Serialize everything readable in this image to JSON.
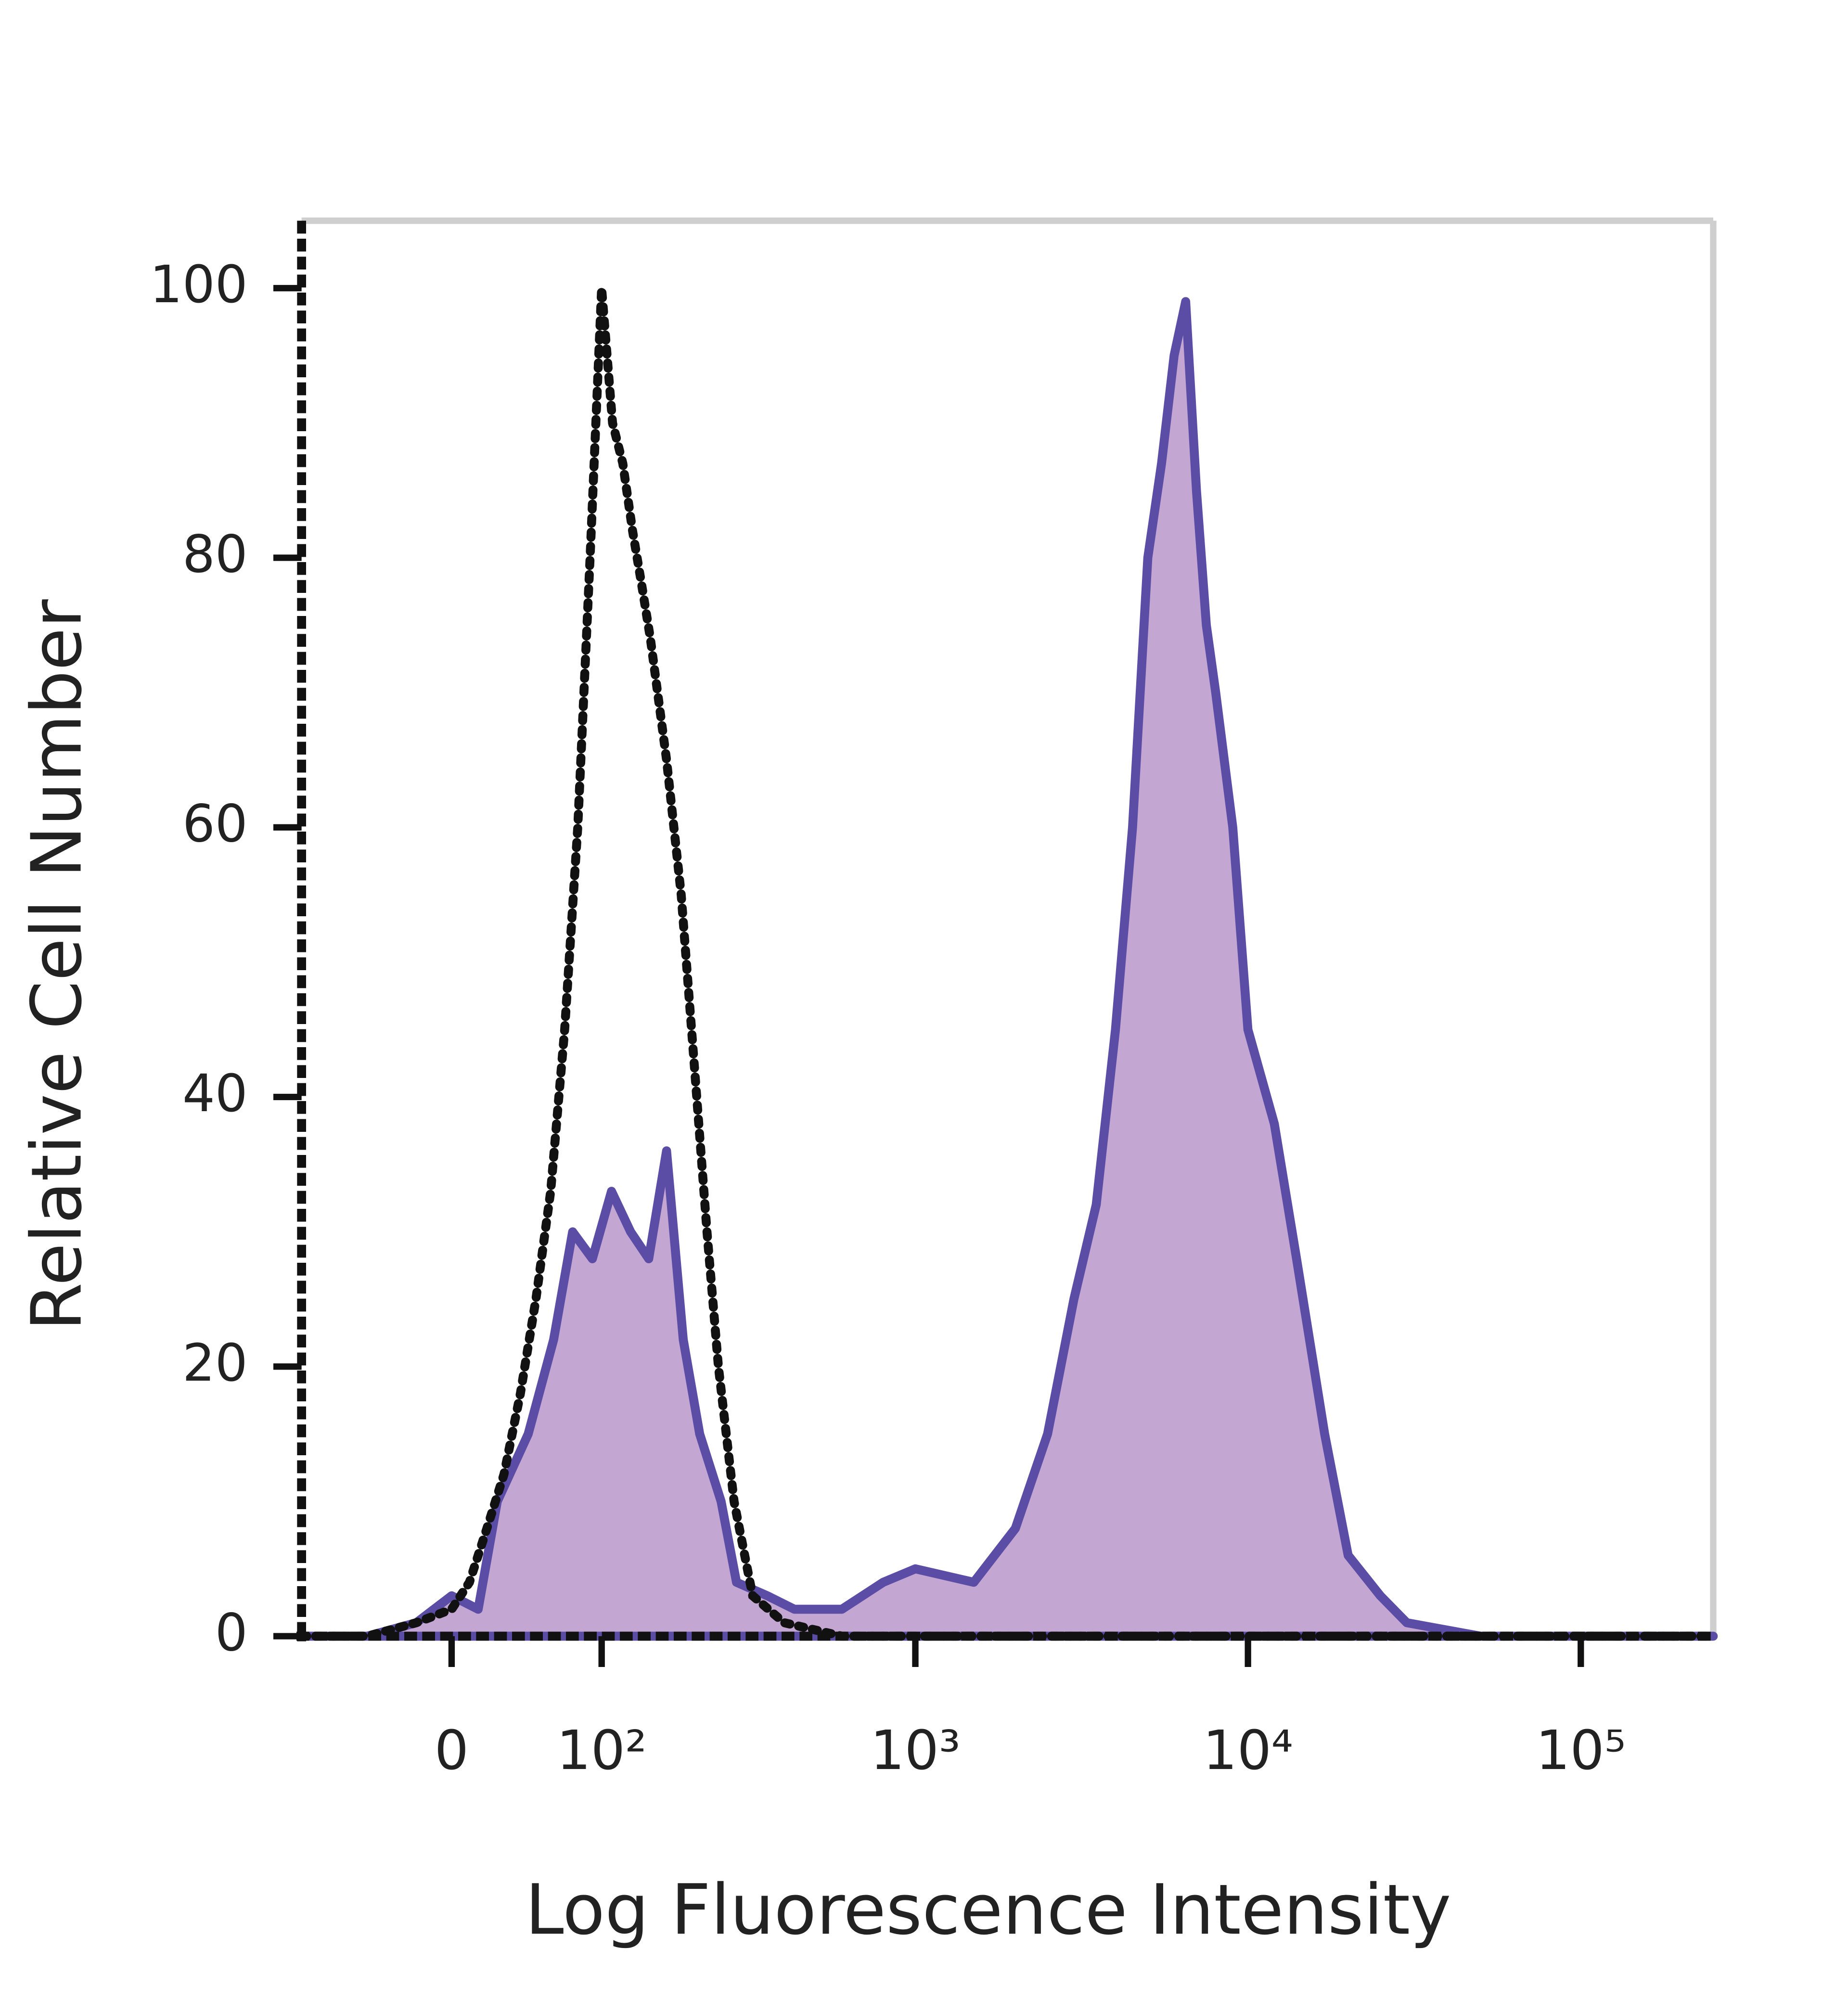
{
  "chart_data": {
    "type": "histogram-overlay",
    "x_label": "Log Fluorescence Intensity",
    "y_label": "Relative Cell Number",
    "xscale": "biexponential",
    "xlim": [
      -100,
      250000
    ],
    "xticks": [
      0,
      {
        "value": 100,
        "label": "10²"
      },
      {
        "value": 1000,
        "label": "10³"
      },
      {
        "value": 10000,
        "label": "10⁴"
      },
      {
        "value": 100000,
        "label": "10⁵"
      }
    ],
    "ylim": [
      0,
      105
    ],
    "yticks": [
      0,
      20,
      40,
      60,
      80,
      100
    ],
    "series": [
      {
        "style": "filled",
        "color": "#5b4ca6",
        "fill": "#c3a6d2",
        "x": [
          -100,
          -50,
          -20,
          0,
          15,
          26,
          45,
          62,
          76,
          92,
          109,
          128,
          148,
          170,
          193,
          218,
          255,
          285,
          355,
          430,
          600,
          800,
          1000,
          1500,
          2000,
          2500,
          3000,
          3500,
          4000,
          4500,
          5000,
          5500,
          6000,
          6500,
          7000,
          7500,
          8000,
          9000,
          10000,
          12000,
          14000,
          17000,
          20000,
          25000,
          30000,
          50000,
          250000
        ],
        "values": [
          0,
          0,
          1,
          3,
          2,
          10,
          15,
          22,
          30,
          28,
          33,
          30,
          28,
          36,
          22,
          15,
          10,
          4,
          3,
          2,
          2,
          4,
          5,
          4,
          8,
          15,
          25,
          32,
          45,
          60,
          80,
          87,
          95,
          99,
          85,
          75,
          70,
          60,
          45,
          38,
          28,
          15,
          6,
          3,
          1,
          0,
          0
        ]
      },
      {
        "style": "dotted",
        "color": "#111111",
        "x": [
          -100,
          -50,
          -20,
          0,
          10,
          20,
          30,
          40,
          50,
          60,
          70,
          80,
          90,
          100,
          110,
          120,
          130,
          140,
          150,
          170,
          190,
          210,
          230,
          250,
          280,
          320,
          400,
          600,
          1000,
          3000,
          10000,
          30000,
          100000,
          250000
        ],
        "values": [
          0,
          0,
          1,
          2,
          4,
          8,
          12,
          18,
          25,
          33,
          45,
          60,
          80,
          100,
          90,
          87,
          82,
          78,
          74,
          65,
          55,
          42,
          30,
          20,
          10,
          3,
          1,
          0,
          0,
          0,
          0,
          0,
          0,
          0
        ]
      }
    ]
  }
}
